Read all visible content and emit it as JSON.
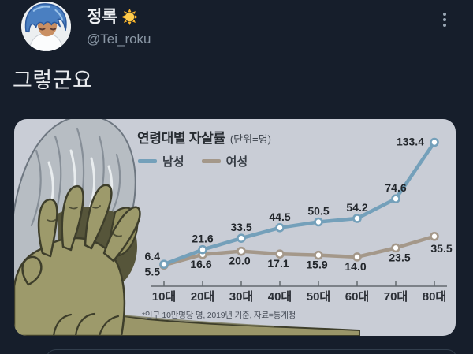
{
  "tweet": {
    "display_name": "정록",
    "handle": "@Tei_roku",
    "text": "그렇군요"
  },
  "icons": {
    "sun_emoji": "☀️",
    "more_menu": "⋮"
  },
  "chart_data": {
    "type": "line",
    "title": "연령대별 자살률",
    "unit_label": "(단위=명)",
    "categories": [
      "10대",
      "20대",
      "30대",
      "40대",
      "50대",
      "60대",
      "70대",
      "80대"
    ],
    "series": [
      {
        "name": "남성",
        "color": "#74a0ba",
        "values": [
          6.4,
          21.6,
          33.5,
          44.5,
          50.5,
          54.2,
          74.6,
          133.4
        ]
      },
      {
        "name": "여성",
        "color": "#a4988a",
        "values": [
          5.5,
          16.6,
          20.0,
          17.1,
          15.9,
          14.0,
          23.5,
          35.5
        ]
      }
    ],
    "footnote": "*인구 10만명당 명, 2019년 기준, 자료=통계청",
    "legend_position": "top-left",
    "grid": false,
    "ylim": [
      0,
      140
    ]
  },
  "colors": {
    "page_bg": "#161e2b",
    "card_bg": "#c9cdd6",
    "male_line": "#74a0ba",
    "female_line": "#a4988a",
    "text_primary": "#e9ebee",
    "text_secondary": "#8a97a5"
  }
}
